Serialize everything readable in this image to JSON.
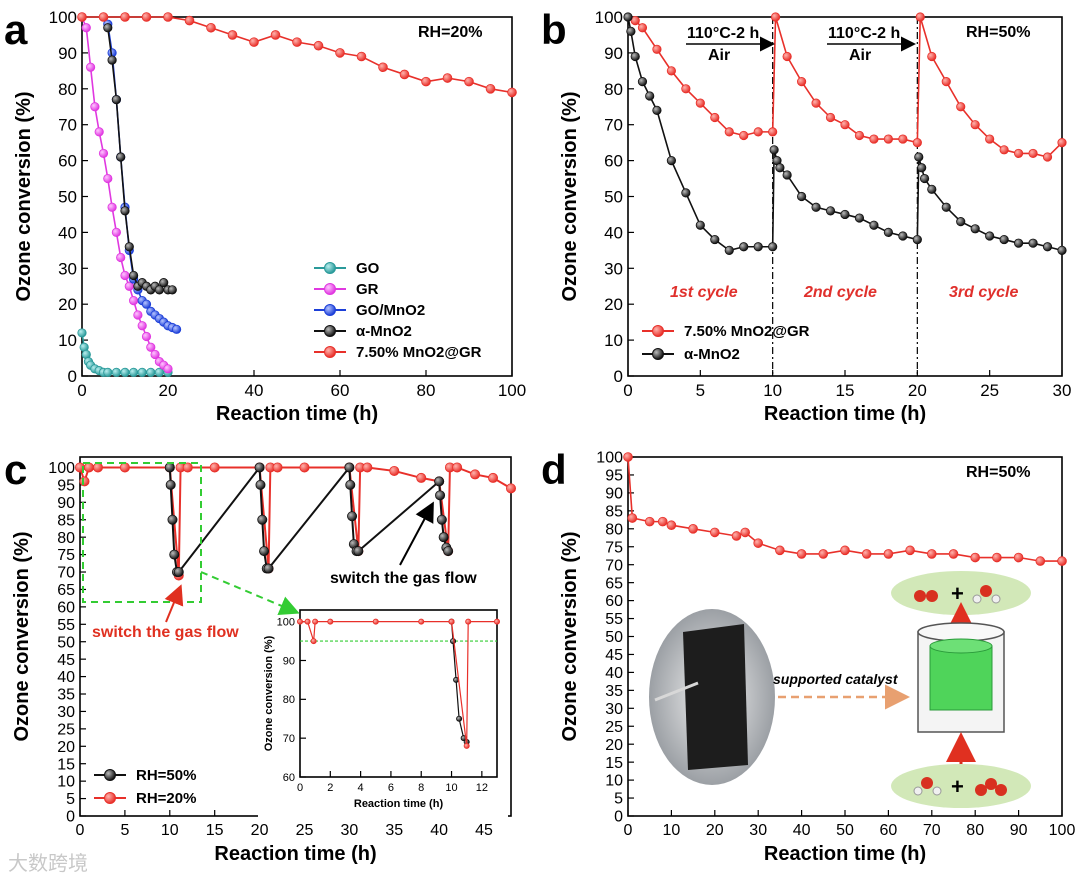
{
  "colors": {
    "red": "#e8302a",
    "black": "#111111",
    "magenta": "#e038e0",
    "blue": "#1c3fd8",
    "teal": "#2a9a9a",
    "green_dash": "#33cc33",
    "arrow_red": "#e03020",
    "inset_bg": "#e0f0d8"
  },
  "watermark": "大数跨境",
  "chart_data": [
    {
      "panel": "a",
      "type": "line",
      "xlabel": "Reaction time (h)",
      "ylabel": "Ozone conversion (%)",
      "xlim": [
        0,
        100
      ],
      "ylim": [
        0,
        100
      ],
      "xticks": [
        0,
        20,
        40,
        60,
        80,
        100
      ],
      "yticks": [
        0,
        10,
        20,
        30,
        40,
        50,
        60,
        70,
        80,
        90,
        100
      ],
      "annotation": "RH=20%",
      "legend_position": "bottom-right",
      "series": [
        {
          "name": "GO",
          "color": "teal",
          "x": [
            0,
            0.5,
            1,
            1.5,
            2,
            3,
            4,
            5,
            6,
            8,
            10,
            12,
            14,
            16,
            18,
            20
          ],
          "y": [
            12,
            8,
            6,
            4,
            3,
            2,
            1.5,
            1,
            1,
            1,
            1,
            1,
            1,
            1,
            1,
            1
          ]
        },
        {
          "name": "GR",
          "color": "magenta",
          "x": [
            0,
            1,
            2,
            3,
            4,
            5,
            6,
            7,
            8,
            9,
            10,
            11,
            12,
            13,
            14,
            15,
            16,
            17,
            18,
            19,
            20
          ],
          "y": [
            100,
            97,
            86,
            75,
            68,
            62,
            55,
            47,
            40,
            33,
            28,
            25,
            21,
            17,
            14,
            11,
            8,
            6,
            4,
            3,
            2
          ]
        },
        {
          "name": "GO/MnO2",
          "color": "blue",
          "x": [
            6,
            7,
            8,
            9,
            10,
            11,
            12,
            13,
            14,
            15,
            16,
            17,
            18,
            19,
            20,
            21,
            22
          ],
          "y": [
            98,
            90,
            77,
            61,
            47,
            35,
            27,
            24,
            21,
            20,
            18,
            17,
            16,
            15,
            14,
            13.5,
            13
          ]
        },
        {
          "name": "α-MnO2",
          "color": "black",
          "x": [
            6,
            7,
            8,
            9,
            10,
            11,
            12,
            13,
            14,
            15,
            16,
            17,
            18,
            19,
            20,
            21
          ],
          "y": [
            97,
            88,
            77,
            61,
            46,
            36,
            28,
            25,
            26,
            25,
            24,
            25,
            24,
            26,
            24,
            24
          ]
        },
        {
          "name": "7.50% MnO2@GR",
          "color": "red",
          "x": [
            0,
            5,
            10,
            15,
            20,
            25,
            30,
            35,
            40,
            45,
            50,
            55,
            60,
            65,
            70,
            75,
            80,
            85,
            90,
            95,
            100
          ],
          "y": [
            100,
            100,
            100,
            100,
            100,
            99,
            97,
            95,
            93,
            95,
            93,
            92,
            90,
            89,
            86,
            84,
            82,
            83,
            82,
            80,
            79
          ]
        }
      ]
    },
    {
      "panel": "b",
      "type": "line",
      "xlabel": "Reaction time (h)",
      "ylabel": "Ozone conversion (%)",
      "xlim": [
        0,
        30
      ],
      "ylim": [
        0,
        100
      ],
      "xticks": [
        0,
        5,
        10,
        15,
        20,
        25,
        30
      ],
      "yticks": [
        0,
        10,
        20,
        30,
        40,
        50,
        60,
        70,
        80,
        90,
        100
      ],
      "annotation": "RH=50%",
      "regeneration_labels": [
        "110°C-2 h",
        "Air"
      ],
      "cycle_labels": [
        "1st cycle",
        "2nd cycle",
        "3rd cycle"
      ],
      "regeneration_times": [
        10,
        20
      ],
      "legend_position": "bottom-left",
      "series": [
        {
          "name": "7.50% MnO2@GR",
          "color": "red",
          "x": [
            0.5,
            1,
            2,
            3,
            4,
            5,
            6,
            7,
            8,
            9,
            10,
            10.2,
            11,
            12,
            13,
            14,
            15,
            16,
            17,
            18,
            19,
            20,
            20.2,
            21,
            22,
            23,
            24,
            25,
            26,
            27,
            28,
            29,
            30
          ],
          "y": [
            99,
            97,
            91,
            85,
            80,
            76,
            72,
            68,
            67,
            68,
            68,
            100,
            89,
            82,
            76,
            72,
            70,
            67,
            66,
            66,
            66,
            65,
            100,
            89,
            82,
            75,
            70,
            66,
            63,
            62,
            62,
            61,
            65
          ]
        },
        {
          "name": "α-MnO2",
          "color": "black",
          "x": [
            0,
            0.2,
            0.5,
            1,
            1.5,
            2,
            3,
            4,
            5,
            6,
            7,
            8,
            9,
            10,
            10.1,
            10.3,
            10.5,
            11,
            12,
            13,
            14,
            15,
            16,
            17,
            18,
            19,
            20,
            20.1,
            20.3,
            20.5,
            21,
            22,
            23,
            24,
            25,
            26,
            27,
            28,
            29,
            30
          ],
          "y": [
            100,
            96,
            89,
            82,
            78,
            74,
            60,
            51,
            42,
            38,
            35,
            36,
            36,
            36,
            63,
            60,
            58,
            56,
            50,
            47,
            46,
            45,
            44,
            42,
            40,
            39,
            38,
            61,
            58,
            55,
            52,
            47,
            43,
            41,
            39,
            38,
            37,
            37,
            36,
            35
          ]
        }
      ]
    },
    {
      "panel": "c",
      "type": "line",
      "xlabel": "Reaction time (h)",
      "ylabel": "Ozone conversion (%)",
      "xlim": [
        0,
        48
      ],
      "ylim": [
        0,
        103
      ],
      "xticks": [
        0,
        5,
        10,
        15,
        20,
        25,
        30,
        35,
        40,
        45
      ],
      "yticks": [
        0,
        5,
        10,
        15,
        20,
        25,
        30,
        35,
        40,
        45,
        50,
        55,
        60,
        65,
        70,
        75,
        80,
        85,
        90,
        95,
        100
      ],
      "annotations": [
        "switch the gas flow",
        "switch the gas flow"
      ],
      "legend_position": "bottom-left",
      "series": [
        {
          "name": "RH=50%",
          "color": "black",
          "x": [
            10,
            10.1,
            10.3,
            10.5,
            10.8,
            11,
            20,
            20.1,
            20.3,
            20.5,
            20.8,
            21,
            30,
            30.1,
            30.3,
            30.5,
            30.8,
            31,
            40,
            40.1,
            40.3,
            40.5,
            40.8,
            41
          ],
          "y": [
            100,
            95,
            85,
            75,
            70,
            70,
            100,
            95,
            85,
            76,
            71,
            71,
            100,
            95,
            86,
            78,
            76,
            76,
            96,
            92,
            85,
            80,
            77,
            76
          ]
        },
        {
          "name": "RH=20%",
          "color": "red",
          "x": [
            0,
            0.5,
            1,
            2,
            5,
            10,
            11,
            11.2,
            12,
            15,
            20,
            21,
            21.2,
            22,
            25,
            30,
            31,
            31.2,
            32,
            35,
            38,
            40,
            41,
            41.2,
            42,
            44,
            46,
            48
          ],
          "y": [
            100,
            96,
            100,
            100,
            100,
            100,
            69,
            100,
            100,
            100,
            100,
            71,
            100,
            100,
            100,
            100,
            76,
            100,
            100,
            99,
            97,
            96,
            76,
            100,
            100,
            98,
            97,
            94
          ]
        }
      ],
      "inset": {
        "xlabel": "Reaction time (h)",
        "ylabel": "Ozone conversion (%)",
        "xlim": [
          0,
          13
        ],
        "ylim": [
          60,
          103
        ],
        "xticks": [
          0,
          2,
          4,
          6,
          8,
          10,
          12
        ],
        "yticks": [
          60,
          70,
          80,
          90,
          100
        ],
        "reference_line": 95,
        "series": [
          {
            "name": "RH=50%",
            "color": "black",
            "x": [
              10,
              10.1,
              10.3,
              10.5,
              10.8,
              11
            ],
            "y": [
              100,
              95,
              85,
              75,
              70,
              69
            ]
          },
          {
            "name": "RH=20%",
            "color": "red",
            "x": [
              0,
              0.5,
              0.9,
              1,
              2,
              5,
              8,
              10,
              11,
              11.1,
              13
            ],
            "y": [
              100,
              100,
              95,
              100,
              100,
              100,
              100,
              100,
              68,
              100,
              100
            ]
          }
        ]
      }
    },
    {
      "panel": "d",
      "type": "line",
      "xlabel": "Reaction time (h)",
      "ylabel": "Ozone conversion (%)",
      "xlim": [
        0,
        100
      ],
      "ylim": [
        0,
        100
      ],
      "xticks": [
        0,
        10,
        20,
        30,
        40,
        50,
        60,
        70,
        80,
        90,
        100
      ],
      "yticks": [
        0,
        5,
        10,
        15,
        20,
        25,
        30,
        35,
        40,
        45,
        50,
        55,
        60,
        65,
        70,
        75,
        80,
        85,
        90,
        95,
        100
      ],
      "annotation": "RH=50%",
      "inset_label": "supported catalyst",
      "series": [
        {
          "name": "",
          "color": "red",
          "x": [
            0,
            1,
            5,
            8,
            10,
            15,
            20,
            25,
            27,
            30,
            35,
            40,
            45,
            50,
            55,
            60,
            65,
            70,
            75,
            80,
            85,
            90,
            95,
            100
          ],
          "y": [
            100,
            83,
            82,
            82,
            81,
            80,
            79,
            78,
            79,
            76,
            74,
            73,
            73,
            74,
            73,
            73,
            74,
            73,
            73,
            72,
            72,
            72,
            71,
            71
          ]
        }
      ]
    }
  ]
}
